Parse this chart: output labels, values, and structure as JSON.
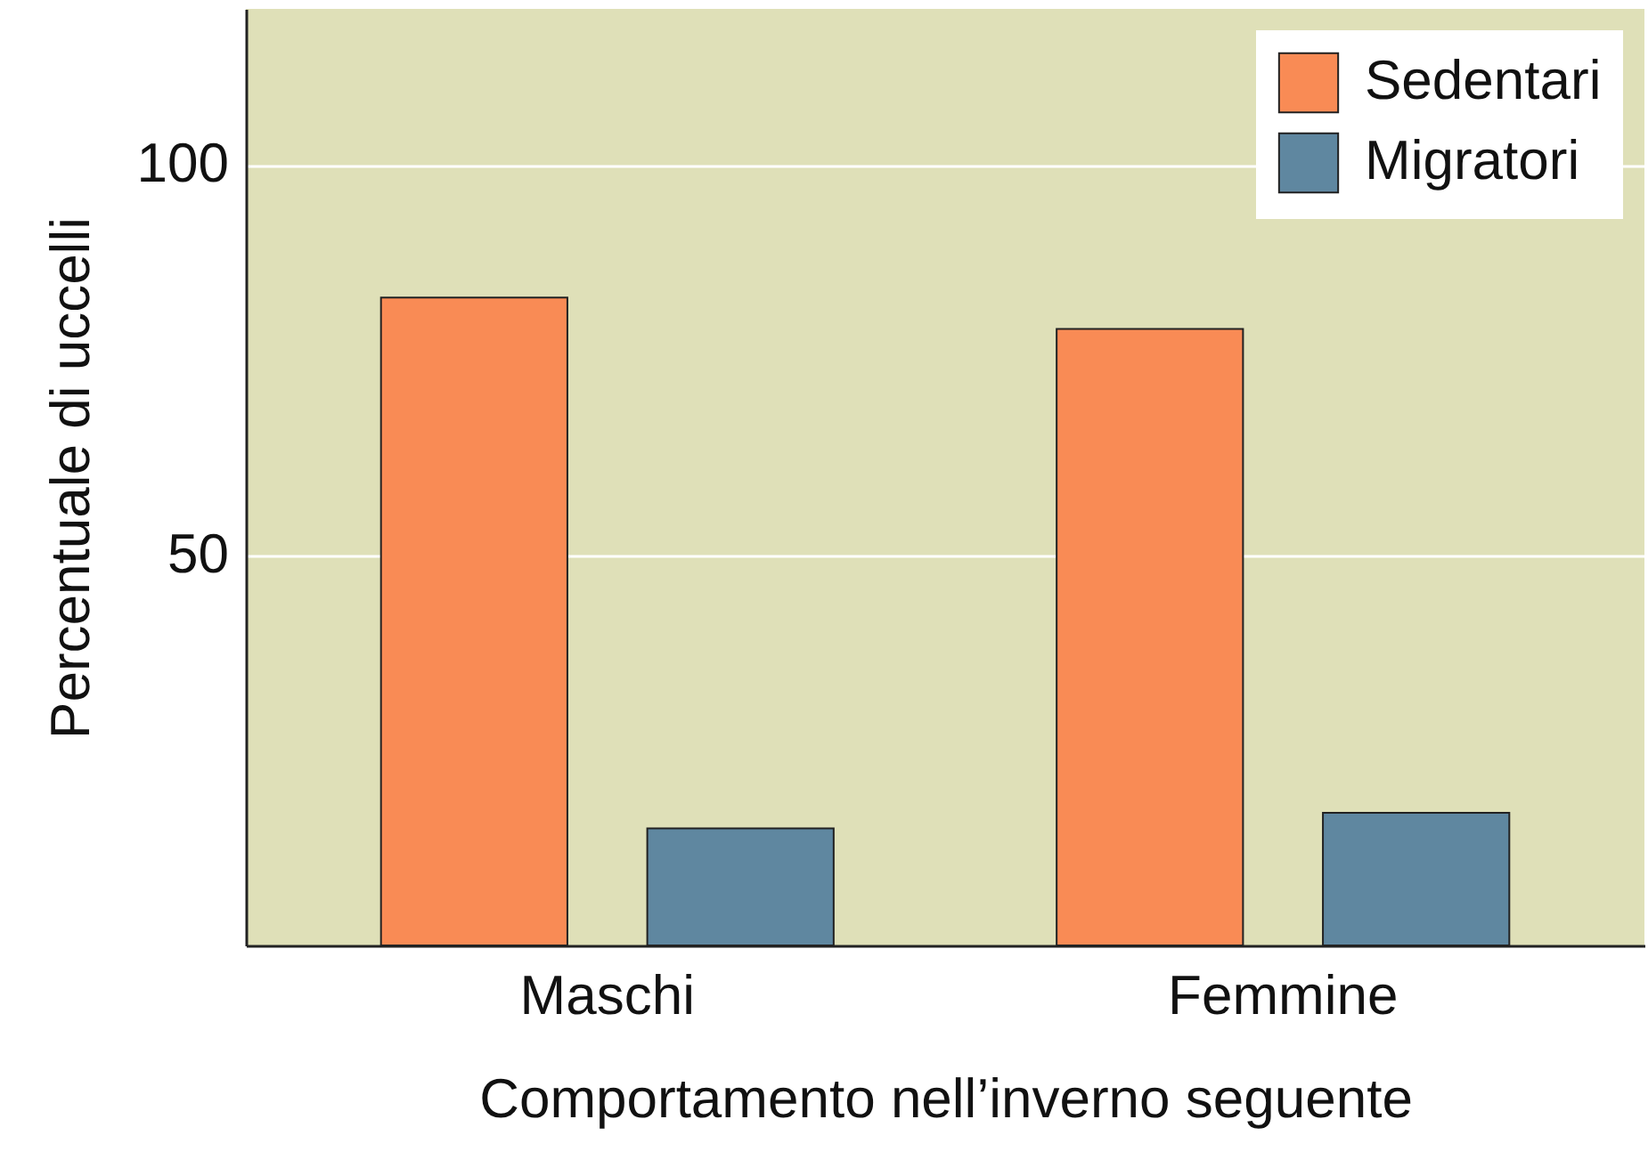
{
  "chart_data": {
    "type": "bar",
    "xlabel": "Comportamento nell’inverno seguente",
    "ylabel": "Percentuale di uccelli",
    "categories": [
      "Maschi",
      "Femmine"
    ],
    "series": [
      {
        "name": "Sedentari",
        "color": "#f98b55",
        "values": [
          83,
          79
        ]
      },
      {
        "name": "Migratori",
        "color": "#5f87a0",
        "values": [
          15,
          17
        ]
      }
    ],
    "ylim": [
      0,
      120
    ],
    "yticks": [
      50,
      100
    ],
    "grid": "y",
    "legend": "top right"
  }
}
